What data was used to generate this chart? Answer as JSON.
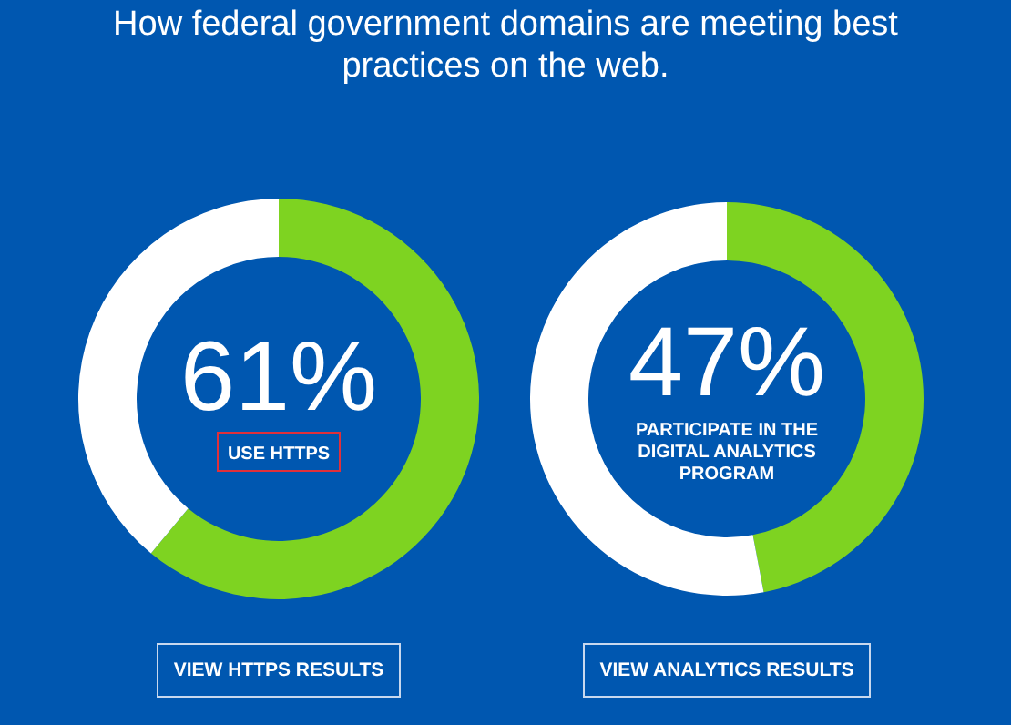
{
  "chart_data": [
    {
      "type": "donut",
      "title": "How federal government domains are meeting best practices on the web.",
      "categories": [
        "USE HTTPS",
        null
      ],
      "values": [
        61,
        39
      ],
      "colors": [
        "#7ed321",
        "#ffffff"
      ],
      "value_labels": [
        "61%",
        null
      ],
      "annotations": [
        "VIEW HTTPS RESULTS"
      ]
    },
    {
      "type": "donut",
      "categories": [
        "PARTICIPATE IN THE DIGITAL ANALYTICS PROGRAM",
        null
      ],
      "values": [
        47,
        53
      ],
      "colors": [
        "#7ed321",
        "#ffffff"
      ],
      "value_labels": [
        "47%",
        null
      ],
      "annotations": [
        "VIEW ANALYTICS RESULTS"
      ]
    }
  ]
}
